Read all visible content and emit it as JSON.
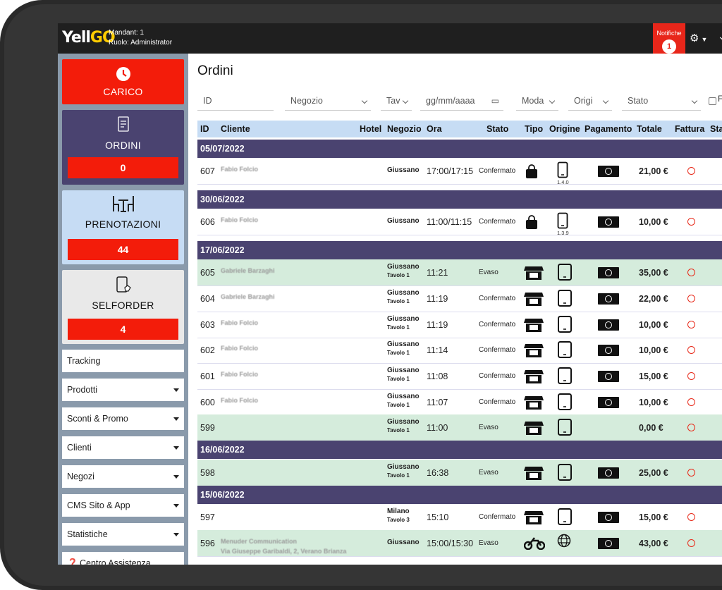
{
  "header": {
    "logo_left": "Yell",
    "logo_right": "GO",
    "mandant": "Mandant: 1",
    "ruolo": "Ruolo: Administrator",
    "notif_label": "Notifiche",
    "notif_count": "1"
  },
  "sidebar": {
    "carico": {
      "label": "CARICO"
    },
    "ordini": {
      "label": "ORDINI",
      "count": "0"
    },
    "prenotazioni": {
      "label": "PRENOTAZIONI",
      "count": "44"
    },
    "selforder": {
      "label": "SELFORDER",
      "count": "4"
    },
    "menu": [
      {
        "label": "Tracking"
      },
      {
        "label": "Prodotti"
      },
      {
        "label": "Sconti & Promo"
      },
      {
        "label": "Clienti"
      },
      {
        "label": "Negozi"
      },
      {
        "label": "CMS Sito & App"
      },
      {
        "label": "Statistiche"
      },
      {
        "label": "Centro Assistenza"
      }
    ]
  },
  "main": {
    "title": "Ordini",
    "filters": {
      "id": "ID",
      "negozio": "Negozio",
      "tavolo": "Tav",
      "data": "gg/mm/aaaa",
      "moda": "Moda",
      "origine": "Origi",
      "stato": "Stato",
      "extra": "F"
    },
    "columns": {
      "id": "ID",
      "cliente": "Cliente",
      "hotel": "Hotel",
      "negozio": "Negozio",
      "ora": "Ora",
      "stato": "Stato",
      "tipo": "Tipo",
      "origine": "Origine",
      "pagamento": "Pagamento",
      "totale": "Totale",
      "fattura": "Fattura",
      "st": "Sta"
    },
    "dates": [
      "05/07/2022",
      "30/06/2022",
      "17/06/2022",
      "16/06/2022",
      "15/06/2022"
    ],
    "rows": [
      {
        "id": "607",
        "cliente": "Fabio Folcio",
        "negozio": "Giussano",
        "tavolo": "",
        "ora": "17:00/17:15",
        "stato": "Confermato",
        "origine_ver": "1.4.0",
        "totale": "21,00 €"
      },
      {
        "id": "606",
        "cliente": "Fabio Folcio",
        "negozio": "Giussano",
        "tavolo": "",
        "ora": "11:00/11:15",
        "stato": "Confermato",
        "origine_ver": "1.3.9",
        "totale": "10,00 €"
      },
      {
        "id": "605",
        "cliente": "Gabriele Barzaghi",
        "negozio": "Giussano",
        "tavolo": "Tavolo 1",
        "ora": "11:21",
        "stato": "Evaso",
        "origine_ver": "",
        "totale": "35,00 €"
      },
      {
        "id": "604",
        "cliente": "Gabriele Barzaghi",
        "negozio": "Giussano",
        "tavolo": "Tavolo 1",
        "ora": "11:19",
        "stato": "Confermato",
        "origine_ver": "",
        "totale": "22,00 €"
      },
      {
        "id": "603",
        "cliente": "Fabio Folcio",
        "negozio": "Giussano",
        "tavolo": "Tavolo 1",
        "ora": "11:19",
        "stato": "Confermato",
        "origine_ver": "",
        "totale": "10,00 €"
      },
      {
        "id": "602",
        "cliente": "Fabio Folcio",
        "negozio": "Giussano",
        "tavolo": "Tavolo 1",
        "ora": "11:14",
        "stato": "Confermato",
        "origine_ver": "",
        "totale": "10,00 €"
      },
      {
        "id": "601",
        "cliente": "Fabio Folcio",
        "negozio": "Giussano",
        "tavolo": "Tavolo 1",
        "ora": "11:08",
        "stato": "Confermato",
        "origine_ver": "",
        "totale": "15,00 €"
      },
      {
        "id": "600",
        "cliente": "Fabio Folcio",
        "negozio": "Giussano",
        "tavolo": "Tavolo 1",
        "ora": "11:07",
        "stato": "Confermato",
        "origine_ver": "",
        "totale": "10,00 €"
      },
      {
        "id": "599",
        "cliente": "",
        "negozio": "Giussano",
        "tavolo": "Tavolo 1",
        "ora": "11:00",
        "stato": "Evaso",
        "origine_ver": "",
        "totale": "0,00 €"
      },
      {
        "id": "598",
        "cliente": "",
        "negozio": "Giussano",
        "tavolo": "Tavolo 1",
        "ora": "16:38",
        "stato": "Evaso",
        "origine_ver": "",
        "totale": "25,00 €"
      },
      {
        "id": "597",
        "cliente": "",
        "negozio": "Milano",
        "tavolo": "Tavolo 3",
        "ora": "15:10",
        "stato": "Confermato",
        "origine_ver": "",
        "totale": "15,00 €"
      },
      {
        "id": "596",
        "cliente": "Menuder Communication",
        "indirizzo": "Via Giuseppe Garibaldi, 2, Verano Brianza",
        "negozio": "Giussano",
        "tavolo": "",
        "ora": "15:00/15:30",
        "stato": "Evaso",
        "origine_ver": "",
        "totale": "43,00 €"
      }
    ]
  },
  "colors": {
    "accent_red": "#f31c0a",
    "dark_purple": "#4a4370",
    "light_blue": "#c6dcf4",
    "evaso_green": "#d5ecdc"
  },
  "icons": {
    "tipo": [
      "bag-icon",
      "shop-icon",
      "motorbike-icon"
    ],
    "origine": [
      "phone-icon",
      "tablet-icon",
      "globe-icon"
    ],
    "pagamento": "cash-icon"
  }
}
